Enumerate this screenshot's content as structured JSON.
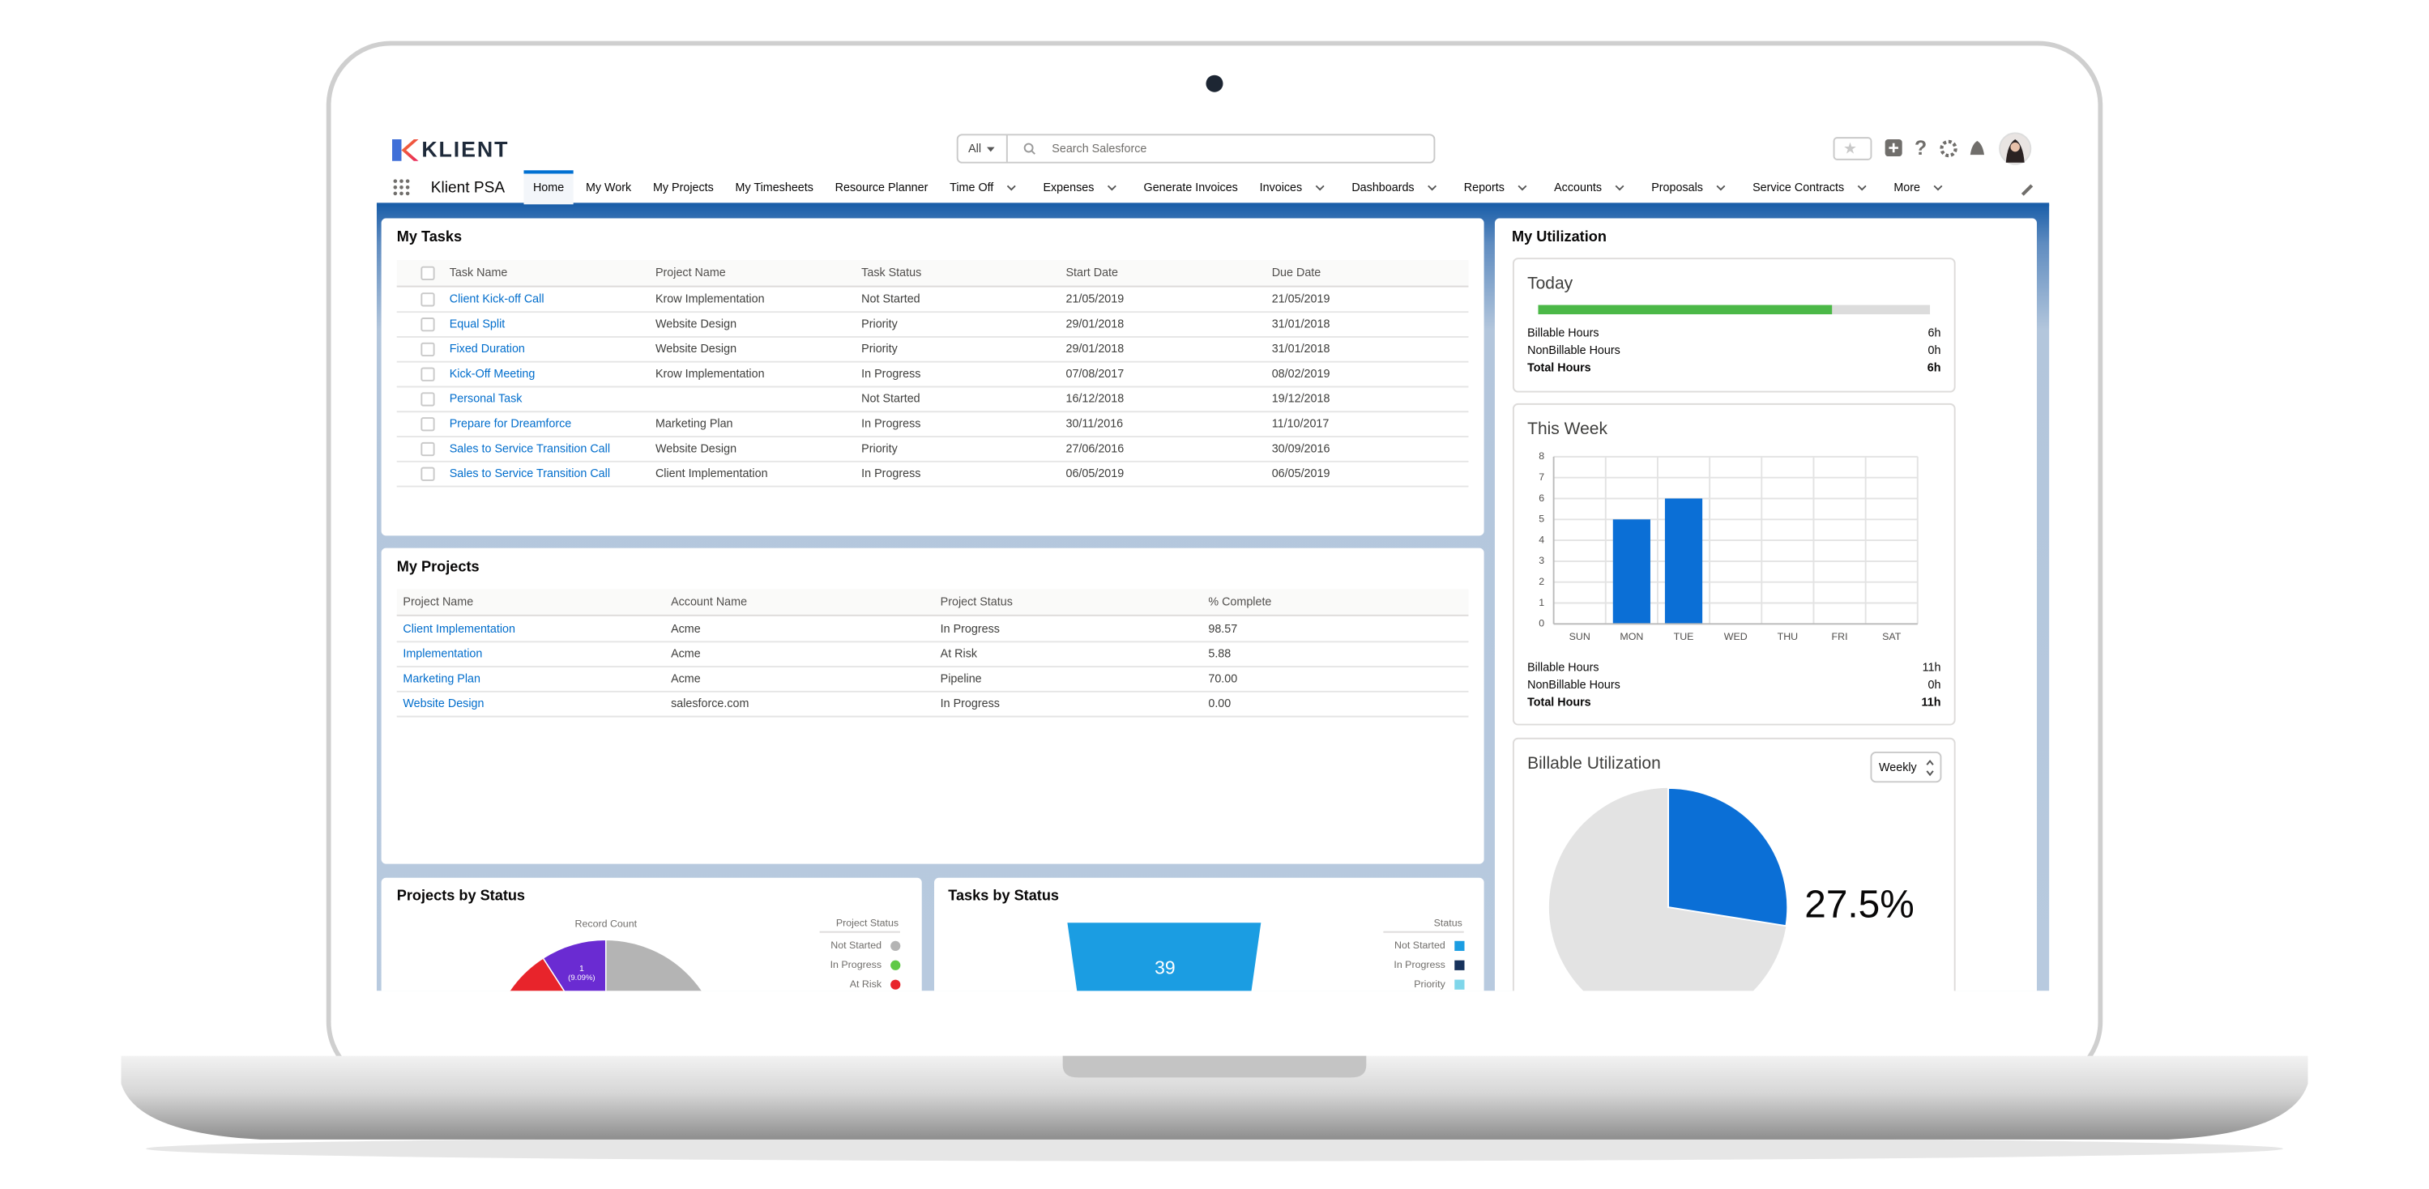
{
  "header": {
    "logo": "KLIENT",
    "search_scope": "All",
    "search_placeholder": "Search Salesforce"
  },
  "nav": {
    "app_name": "Klient PSA",
    "items": [
      {
        "label": "Home",
        "active": true
      },
      {
        "label": "My Work"
      },
      {
        "label": "My Projects"
      },
      {
        "label": "My Timesheets"
      },
      {
        "label": "Resource Planner"
      },
      {
        "label": "Time Off",
        "menu": true
      },
      {
        "label": "Expenses",
        "menu": true
      },
      {
        "label": "Generate Invoices"
      },
      {
        "label": "Invoices",
        "menu": true
      },
      {
        "label": "Dashboards",
        "menu": true
      },
      {
        "label": "Reports",
        "menu": true
      },
      {
        "label": "Accounts",
        "menu": true
      },
      {
        "label": "Proposals",
        "menu": true
      },
      {
        "label": "Service Contracts",
        "menu": true
      },
      {
        "label": "More",
        "menu": true
      }
    ]
  },
  "my_tasks": {
    "title": "My Tasks",
    "columns": [
      "Task Name",
      "Project Name",
      "Task Status",
      "Start Date",
      "Due Date"
    ],
    "rows": [
      [
        "Client Kick-off Call",
        "Krow Implementation",
        "Not Started",
        "21/05/2019",
        "21/05/2019"
      ],
      [
        "Equal Split",
        "Website Design",
        "Priority",
        "29/01/2018",
        "31/01/2018"
      ],
      [
        "Fixed Duration",
        "Website Design",
        "Priority",
        "29/01/2018",
        "31/01/2018"
      ],
      [
        "Kick-Off Meeting",
        "Krow Implementation",
        "In Progress",
        "07/08/2017",
        "08/02/2019"
      ],
      [
        "Personal Task",
        null,
        "Not Started",
        "16/12/2018",
        "19/12/2018"
      ],
      [
        "Prepare for Dreamforce",
        "Marketing Plan",
        "In Progress",
        "30/11/2016",
        "11/10/2017"
      ],
      [
        "Sales to Service Transition Call",
        "Website Design",
        "Priority",
        "27/06/2016",
        "30/09/2016"
      ],
      [
        "Sales to Service Transition Call",
        "Client Implementation",
        "In Progress",
        "06/05/2019",
        "06/05/2019"
      ]
    ]
  },
  "my_projects": {
    "title": "My Projects",
    "columns": [
      "Project Name",
      "Account Name",
      "Project Status",
      "% Complete"
    ],
    "rows": [
      [
        "Client Implementation",
        "Acme",
        "In Progress",
        "98.57"
      ],
      [
        "Implementation",
        "Acme",
        "At Risk",
        "5.88"
      ],
      [
        "Marketing Plan",
        "Acme",
        "Pipeline",
        "70.00"
      ],
      [
        "Website Design",
        "salesforce.com",
        "In Progress",
        "0.00"
      ]
    ]
  },
  "projects_by_status": {
    "title": "Projects by Status",
    "type": "pie",
    "measure": "Record Count",
    "legend_title": "Project Status",
    "legend": [
      {
        "name": "Not Started",
        "color": "#b4b4b4"
      },
      {
        "name": "In Progress",
        "color": "#5fc946"
      },
      {
        "name": "At Risk",
        "color": "#e8242b"
      }
    ],
    "slices": [
      {
        "value": 1,
        "label": "1",
        "percent_label": "(9.09%)",
        "color": "#6a2bd2"
      },
      {
        "value": 1,
        "color": "#e8242b"
      },
      {
        "value": 9,
        "color": "#b4b4b4"
      }
    ]
  },
  "tasks_by_status": {
    "title": "Tasks by Status",
    "type": "funnel",
    "legend_title": "Status",
    "legend": [
      {
        "name": "Not Started",
        "color": "#1b9de2"
      },
      {
        "name": "In Progress",
        "color": "#16325c"
      },
      {
        "name": "Priority",
        "color": "#7fd6ea"
      }
    ],
    "values": [
      39
    ],
    "color": "#1b9de2"
  },
  "my_utilization": {
    "title": "My Utilization",
    "today": {
      "title": "Today",
      "progress": 75,
      "color": "#4bb847",
      "rows": [
        [
          "Billable Hours",
          "6h"
        ],
        [
          "NonBillable Hours",
          "0h"
        ],
        [
          "Total Hours",
          "6h"
        ]
      ]
    },
    "this_week": {
      "title": "This Week",
      "type": "bar",
      "categories": [
        "SUN",
        "MON",
        "TUE",
        "WED",
        "THU",
        "FRI",
        "SAT"
      ],
      "values": [
        0,
        5,
        6,
        0,
        0,
        0,
        0
      ],
      "color": "#0b6fd6",
      "ylim": [
        0,
        8
      ],
      "yticks": [
        0,
        1,
        2,
        3,
        4,
        5,
        6,
        7,
        8
      ],
      "grid": true,
      "rows": [
        [
          "Billable Hours",
          "11h"
        ],
        [
          "NonBillable Hours",
          "0h"
        ],
        [
          "Total Hours",
          "11h"
        ]
      ]
    },
    "billable_utilization": {
      "title": "Billable Utilization",
      "period": "Weekly",
      "type": "pie",
      "value": 27.5,
      "value_label": "27.5%",
      "color": "#0b6fd6",
      "rest_color": "#e3e3e3"
    }
  }
}
